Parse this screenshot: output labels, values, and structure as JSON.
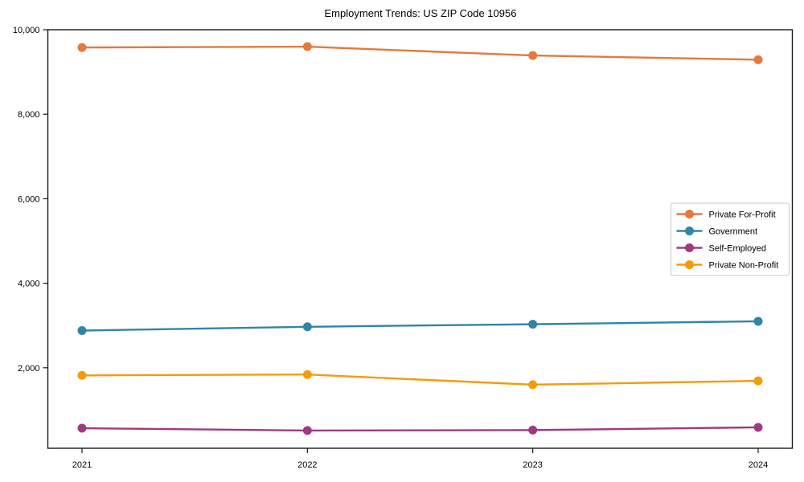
{
  "page": {
    "title": "Employment Trends: US ZIP Code 10956"
  },
  "chart_data": {
    "type": "line",
    "title": "Employment Trends: US ZIP Code 10956",
    "xlabel": "",
    "ylabel": "",
    "categories": [
      "2021",
      "2022",
      "2023",
      "2024"
    ],
    "series": [
      {
        "name": "Private For-Profit",
        "color": "#E6793C",
        "values": [
          9580,
          9600,
          9390,
          9290
        ]
      },
      {
        "name": "Government",
        "color": "#2E86A6",
        "values": [
          2880,
          2970,
          3030,
          3100
        ]
      },
      {
        "name": "Self-Employed",
        "color": "#A03A80",
        "values": [
          570,
          515,
          525,
          590
        ]
      },
      {
        "name": "Private Non-Profit",
        "color": "#F49B0C",
        "values": [
          1820,
          1840,
          1600,
          1690
        ]
      }
    ],
    "y_ticks": [
      {
        "value": 2000,
        "label": "2,000"
      },
      {
        "value": 4000,
        "label": "4,000"
      },
      {
        "value": 6000,
        "label": "6,000"
      },
      {
        "value": 8000,
        "label": "8,000"
      },
      {
        "value": 10000,
        "label": "10,000"
      }
    ],
    "ylim": [
      95,
      10000
    ],
    "grid": false,
    "legend_position": "right-middle",
    "marker": "circle"
  }
}
